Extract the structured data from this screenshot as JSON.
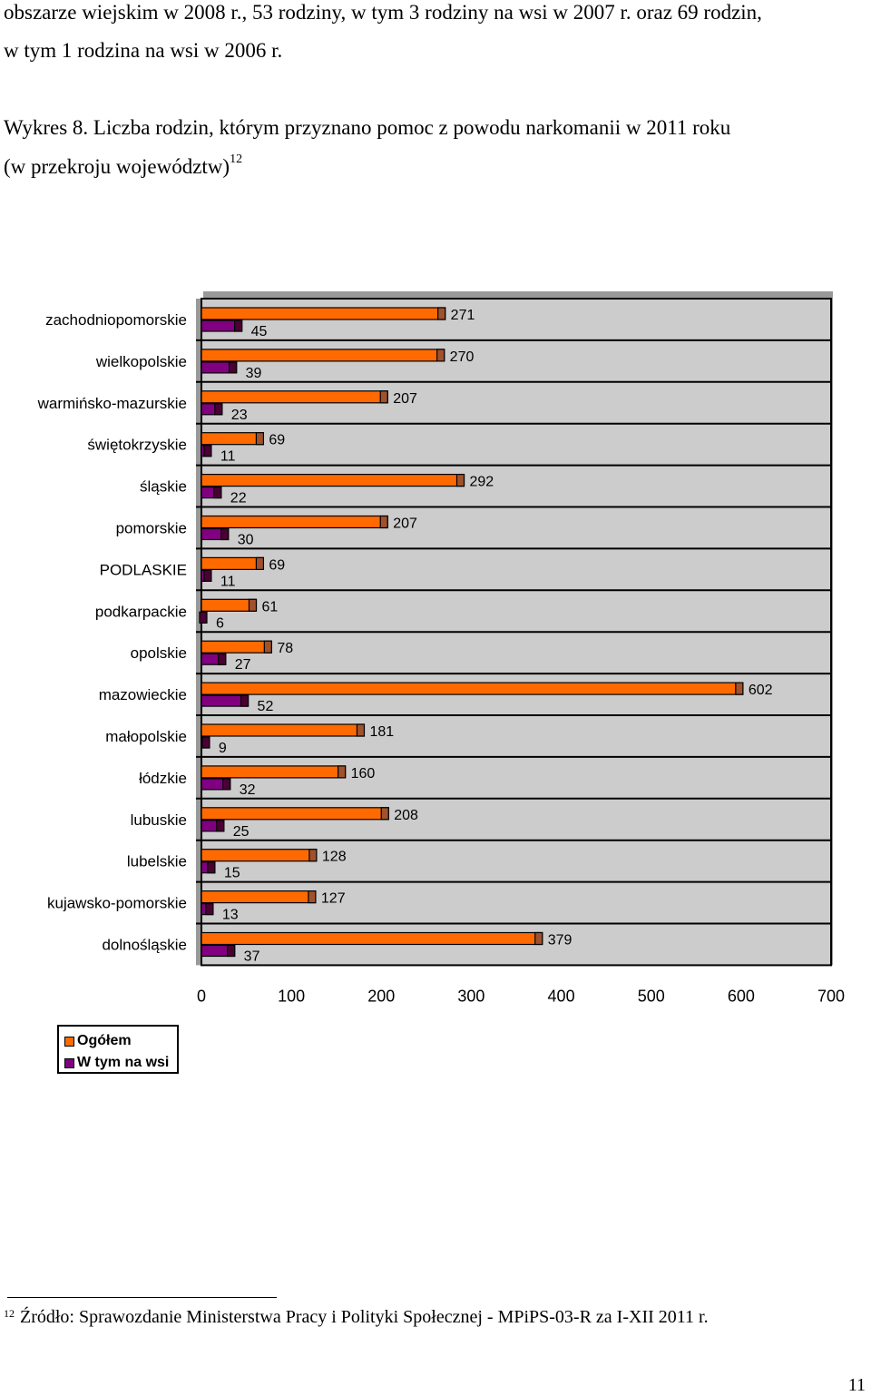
{
  "intro": {
    "line1": "obszarze wiejskim w 2008 r., 53 rodziny, w tym 3 rodziny na wsi w 2007 r. oraz 69 rodzin,",
    "line2": "w tym 1 rodzina na wsi w 2006 r."
  },
  "caption": {
    "line1": "Wykres 8. Liczba rodzin, którym przyznano pomoc z powodu narkomanii w 2011 roku",
    "line2": "(w przekroju województw)",
    "ref": "12"
  },
  "chart_data": {
    "type": "bar",
    "orientation": "horizontal",
    "categories": [
      "zachodniopomorskie",
      "wielkopolskie",
      "warmińsko-mazurskie",
      "świętokrzyskie",
      "śląskie",
      "pomorskie",
      "PODLASKIE",
      "podkarpackie",
      "opolskie",
      "mazowieckie",
      "małopolskie",
      "łódzkie",
      "lubuskie",
      "lubelskie",
      "kujawsko-pomorskie",
      "dolnośląskie"
    ],
    "series": [
      {
        "name": "Ogółem",
        "values": [
          271,
          270,
          207,
          69,
          292,
          207,
          69,
          61,
          78,
          602,
          181,
          160,
          208,
          128,
          127,
          379
        ]
      },
      {
        "name": "W tym na wsi",
        "values": [
          45,
          39,
          23,
          11,
          22,
          30,
          11,
          6,
          27,
          52,
          9,
          32,
          25,
          15,
          13,
          37
        ]
      }
    ],
    "xlim": [
      0,
      700
    ],
    "xticks": [
      "0",
      "100",
      "200",
      "300",
      "400",
      "500",
      "600",
      "700"
    ],
    "grid": true,
    "legend_position": "bottom-left",
    "colors": {
      "Ogółem": "#ff6a00",
      "W tym na wsi": "#800080",
      "bar_end": "#a0522d",
      "plot_bg": "#cccccc"
    }
  },
  "legend": {
    "items": [
      "Ogółem",
      "W tym na wsi"
    ]
  },
  "footnote": {
    "ref": "12",
    "text": "Źródło: Sprawozdanie Ministerstwa Pracy i Polityki Społecznej - MPiPS-03-R za I-XII 2011 r."
  },
  "page_number": "11"
}
